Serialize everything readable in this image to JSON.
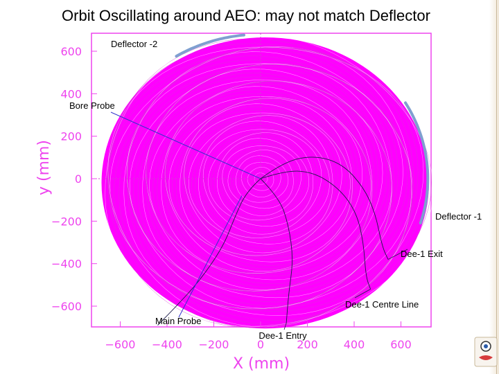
{
  "slide": {
    "title": "Orbit Oscillating around AEO: may not match Deflector"
  },
  "chart_data": {
    "type": "line",
    "title": "Orbit Oscillating around AEO: may not match Deflector",
    "xlabel": "X (mm)",
    "ylabel": "y (mm)",
    "xlim": [
      -700,
      720
    ],
    "ylim": [
      -700,
      640
    ],
    "x_ticks": [
      {
        "value": -600,
        "label": "−600"
      },
      {
        "value": -400,
        "label": "−400"
      },
      {
        "value": -200,
        "label": "−200"
      },
      {
        "value": 0,
        "label": "0"
      },
      {
        "value": 200,
        "label": "200"
      },
      {
        "value": 400,
        "label": "400"
      },
      {
        "value": 600,
        "label": "600"
      }
    ],
    "y_ticks": [
      {
        "value": 600,
        "label": "600"
      },
      {
        "value": 400,
        "label": "400"
      },
      {
        "value": 200,
        "label": "200"
      },
      {
        "value": 0,
        "label": "0"
      },
      {
        "value": -200,
        "label": "−200"
      },
      {
        "value": -400,
        "label": "−400"
      },
      {
        "value": -600,
        "label": "−600"
      }
    ],
    "orbit": {
      "max_radius_mm": 700,
      "turns": 75,
      "x_center_offset_mm": 20,
      "color": "#ff00ff",
      "edge_color": "#d040d0"
    },
    "annotations": [
      {
        "label": "Deflector -2",
        "ax": -630,
        "ay": 630,
        "tx": -630,
        "ty": 630
      },
      {
        "label": "Bore Probe",
        "ax": -650,
        "ay": 335,
        "tx": 0,
        "ty": 0
      },
      {
        "label": "Deflector -1",
        "ax": 770,
        "ay": -180,
        "tx": 770,
        "ty": -180
      },
      {
        "label": "Dee-1 Exit",
        "ax": 610,
        "ay": -360,
        "tx": 580,
        "ty": -320
      },
      {
        "label": "Dee-1 Centre Line",
        "ax": 520,
        "ay": -590,
        "tx": 430,
        "ty": -520
      },
      {
        "label": "Main Probe",
        "ax": -450,
        "ay": -670,
        "tx": -440,
        "ty": -690
      },
      {
        "label": "Dee-1 Entry",
        "ax": 110,
        "ay": -740,
        "tx": 110,
        "ty": -680
      }
    ],
    "dee_curves": [
      [
        [
          0,
          0
        ],
        [
          100,
          80
        ],
        [
          230,
          110
        ],
        [
          350,
          70
        ],
        [
          440,
          -40
        ],
        [
          490,
          -160
        ],
        [
          520,
          -320
        ],
        [
          545,
          -380
        ]
      ],
      [
        [
          0,
          0
        ],
        [
          110,
          40
        ],
        [
          230,
          30
        ],
        [
          340,
          -50
        ],
        [
          410,
          -160
        ],
        [
          440,
          -300
        ],
        [
          450,
          -460
        ],
        [
          470,
          -520
        ]
      ],
      [
        [
          0,
          0
        ],
        [
          80,
          -90
        ],
        [
          120,
          -220
        ],
        [
          140,
          -380
        ],
        [
          120,
          -540
        ],
        [
          110,
          -680
        ]
      ],
      [
        [
          0,
          0
        ],
        [
          -60,
          -60
        ],
        [
          -110,
          -180
        ],
        [
          -160,
          -320
        ],
        [
          -260,
          -480
        ],
        [
          -360,
          -600
        ],
        [
          -440,
          -690
        ]
      ]
    ],
    "deflector_1": {
      "center": [
        0,
        0
      ],
      "radius": 715,
      "start_deg": 30,
      "end_deg": -17,
      "color": "#7f9fd0"
    },
    "deflector_2": {
      "center": [
        0,
        0
      ],
      "radius": 680,
      "start_deg": 96,
      "end_deg": 122,
      "color": "#7f9fd0"
    },
    "probe_color": "#3333cc",
    "dotted_ref": {
      "color": "#cc44cc",
      "x_tick": 0,
      "y_tick": 0
    }
  }
}
